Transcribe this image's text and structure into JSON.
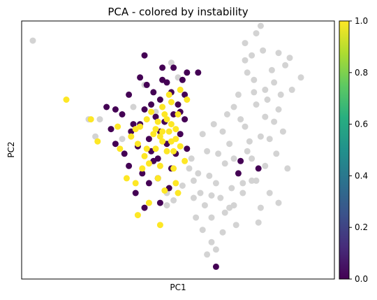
{
  "chart_data": {
    "type": "scatter",
    "title": "PCA - colored by instability",
    "xlabel": "PC1",
    "ylabel": "PC2",
    "xticks": [],
    "yticks": [],
    "xlim": [
      -6.5,
      7.5
    ],
    "ylim": [
      -5.5,
      5.0
    ],
    "grid": false,
    "colorbar": {
      "colormap": "viridis",
      "range": [
        0.0,
        1.0
      ],
      "ticks": [
        "0.0",
        "0.2",
        "0.4",
        "0.6",
        "0.8",
        "1.0"
      ]
    },
    "colors": {
      "missing": "#d3d3d3",
      "value_0": "#440154",
      "value_1": "#fde725"
    },
    "series": [
      {
        "value": null,
        "points": [
          [
            -6.0,
            4.2
          ],
          [
            -3.5,
            1.0
          ],
          [
            -3.0,
            1.0
          ],
          [
            -3.2,
            0.3
          ],
          [
            -2.0,
            0.2
          ],
          [
            -1.5,
            1.5
          ],
          [
            -1.0,
            2.4
          ],
          [
            -0.5,
            1.3
          ],
          [
            0.5,
            2.7
          ],
          [
            0.2,
            3.3
          ],
          [
            0.0,
            -2.0
          ],
          [
            0.3,
            -2.3
          ],
          [
            0.0,
            -2.5
          ],
          [
            1.0,
            -1.0
          ],
          [
            1.2,
            -1.5
          ],
          [
            1.5,
            -2.0
          ],
          [
            1.7,
            -2.5
          ],
          [
            2.0,
            -3.0
          ],
          [
            1.6,
            -3.5
          ],
          [
            2.0,
            -4.0
          ],
          [
            1.8,
            -4.5
          ],
          [
            2.2,
            -4.3
          ],
          [
            1.3,
            -3.0
          ],
          [
            2.6,
            -2.8
          ],
          [
            3.0,
            -2.5
          ],
          [
            3.4,
            -2.0
          ],
          [
            3.8,
            -1.5
          ],
          [
            4.2,
            4.8
          ],
          [
            4.0,
            4.5
          ],
          [
            3.5,
            4.1
          ],
          [
            3.8,
            3.6
          ],
          [
            4.3,
            3.8
          ],
          [
            5.0,
            3.7
          ],
          [
            5.3,
            3.2
          ],
          [
            5.5,
            3.5
          ],
          [
            6.0,
            2.7
          ],
          [
            4.4,
            2.2
          ],
          [
            4.8,
            2.5
          ],
          [
            3.9,
            2.6
          ],
          [
            3.2,
            2.0
          ],
          [
            3.0,
            1.5
          ],
          [
            3.5,
            0.7
          ],
          [
            4.2,
            0.3
          ],
          [
            4.8,
            0.9
          ],
          [
            4.0,
            1.6
          ],
          [
            3.0,
            -0.6
          ],
          [
            3.6,
            -0.3
          ],
          [
            4.4,
            -0.9
          ],
          [
            2.8,
            0.0
          ],
          [
            2.5,
            0.5
          ],
          [
            5.0,
            1.4
          ],
          [
            5.2,
            0.5
          ],
          [
            4.0,
            -1.5
          ],
          [
            3.2,
            -1.2
          ],
          [
            2.6,
            -0.8
          ],
          [
            2.2,
            -1.6
          ],
          [
            2.4,
            -2.2
          ],
          [
            4.6,
            -2.0
          ],
          [
            5.4,
            -1.0
          ],
          [
            5.0,
            -2.4
          ],
          [
            4.2,
            -2.6
          ],
          [
            3.3,
            1.0
          ],
          [
            3.8,
            -0.6
          ],
          [
            4.5,
            1.8
          ],
          [
            2.9,
            -1.8
          ],
          [
            4.7,
            3.0
          ],
          [
            3.6,
            2.9
          ],
          [
            2.7,
            1.2
          ],
          [
            1.8,
            -0.3
          ],
          [
            1.4,
            -1.2
          ],
          [
            5.6,
            2.2
          ],
          [
            3.1,
            -3.3
          ],
          [
            2.5,
            -3.6
          ],
          [
            4.1,
            -3.2
          ],
          [
            1.9,
            -1.3
          ],
          [
            2.1,
            0.8
          ],
          [
            3.7,
            0.1
          ],
          [
            4.9,
            -0.4
          ],
          [
            3.4,
            -1.6
          ],
          [
            2.3,
            -0.4
          ],
          [
            4.4,
            1.1
          ],
          [
            1.1,
            -0.6
          ],
          [
            1.6,
            0.4
          ],
          [
            3.9,
            2.1
          ],
          [
            4.6,
            0.2
          ],
          [
            5.1,
            2.0
          ],
          [
            2.8,
            -2.6
          ],
          [
            3.5,
            3.4
          ],
          [
            1.2,
            -2.2
          ],
          [
            0.7,
            -1.7
          ],
          [
            2.0,
            -2.1
          ]
        ]
      },
      {
        "value": 0.0,
        "points": [
          [
            -1.0,
            3.6
          ],
          [
            -1.2,
            2.7
          ],
          [
            -1.7,
            2.0
          ],
          [
            -2.3,
            1.4
          ],
          [
            -2.0,
            1.2
          ],
          [
            -2.7,
            1.5
          ],
          [
            -1.5,
            0.8
          ],
          [
            -1.0,
            1.4
          ],
          [
            -0.6,
            2.1
          ],
          [
            -0.2,
            2.6
          ],
          [
            0.3,
            3.1
          ],
          [
            0.7,
            2.6
          ],
          [
            0.5,
            1.6
          ],
          [
            0.2,
            2.1
          ],
          [
            -0.3,
            1.8
          ],
          [
            -0.5,
            1.1
          ],
          [
            -0.8,
            0.2
          ],
          [
            -0.3,
            0.5
          ],
          [
            0.0,
            0.0
          ],
          [
            0.4,
            -0.4
          ],
          [
            -0.6,
            -0.7
          ],
          [
            -1.1,
            -1.2
          ],
          [
            -0.8,
            -1.6
          ],
          [
            -0.4,
            -1.4
          ],
          [
            0.1,
            -1.8
          ],
          [
            -1.6,
            0.5
          ],
          [
            -2.3,
            0.0
          ],
          [
            -2.5,
            0.6
          ],
          [
            -1.9,
            -0.4
          ],
          [
            -1.3,
            -0.1
          ],
          [
            -0.1,
            0.9
          ],
          [
            0.6,
            0.4
          ],
          [
            0.9,
            -0.2
          ],
          [
            0.8,
            1.0
          ],
          [
            -0.9,
            2.4
          ],
          [
            0.9,
            2.9
          ],
          [
            1.4,
            2.9
          ],
          [
            0.0,
            2.5
          ],
          [
            0.6,
            1.3
          ],
          [
            -1.4,
            -2.0
          ],
          [
            -1.0,
            -2.6
          ],
          [
            -0.3,
            -2.4
          ],
          [
            -0.7,
            -0.3
          ],
          [
            0.3,
            1.2
          ],
          [
            -1.2,
            0.8
          ],
          [
            -0.4,
            -0.6
          ],
          [
            0.2,
            -1.0
          ],
          [
            3.3,
            -0.7
          ],
          [
            3.2,
            -1.2
          ],
          [
            4.1,
            -1.0
          ],
          [
            2.2,
            -5.0
          ],
          [
            -0.2,
            3.1
          ],
          [
            -0.7,
            1.6
          ],
          [
            0.8,
            2.0
          ],
          [
            -1.7,
            -0.9
          ]
        ]
      },
      {
        "value": 1.0,
        "points": [
          [
            -4.5,
            1.8
          ],
          [
            -3.4,
            1.0
          ],
          [
            -3.1,
            0.1
          ],
          [
            -2.2,
            0.7
          ],
          [
            -2.1,
            -0.2
          ],
          [
            -1.6,
            0.3
          ],
          [
            -1.2,
            0.7
          ],
          [
            -0.9,
            1.0
          ],
          [
            -0.6,
            0.4
          ],
          [
            -0.2,
            0.5
          ],
          [
            0.2,
            0.8
          ],
          [
            0.5,
            1.2
          ],
          [
            0.4,
            0.2
          ],
          [
            0.0,
            -0.3
          ],
          [
            -0.5,
            -0.2
          ],
          [
            -1.0,
            -0.5
          ],
          [
            -1.3,
            0.0
          ],
          [
            -0.7,
            1.3
          ],
          [
            0.2,
            1.7
          ],
          [
            -0.1,
            1.2
          ],
          [
            0.6,
            2.2
          ],
          [
            0.9,
            1.8
          ],
          [
            0.1,
            2.0
          ],
          [
            -0.4,
            0.9
          ],
          [
            -0.3,
            -0.9
          ],
          [
            0.3,
            -1.0
          ],
          [
            0.8,
            -0.7
          ],
          [
            -0.8,
            -0.8
          ],
          [
            -1.1,
            -1.0
          ],
          [
            -0.2,
            0.1
          ],
          [
            0.3,
            -0.3
          ],
          [
            -1.4,
            -1.6
          ],
          [
            -0.8,
            -2.4
          ],
          [
            0.4,
            -1.6
          ],
          [
            0.5,
            -2.0
          ],
          [
            -0.4,
            -1.4
          ],
          [
            -0.1,
            -1.9
          ],
          [
            -1.3,
            -2.9
          ],
          [
            -0.3,
            -3.3
          ],
          [
            -1.8,
            -1.4
          ],
          [
            -1.4,
            0.6
          ],
          [
            0.1,
            0.5
          ],
          [
            0.0,
            1.0
          ],
          [
            0.2,
            0.1
          ],
          [
            -0.5,
            0.6
          ],
          [
            -0.3,
            0.3
          ],
          [
            0.4,
            0.6
          ],
          [
            0.6,
            -0.1
          ],
          [
            -0.2,
            1.5
          ],
          [
            -0.9,
            -0.2
          ]
        ]
      }
    ]
  }
}
